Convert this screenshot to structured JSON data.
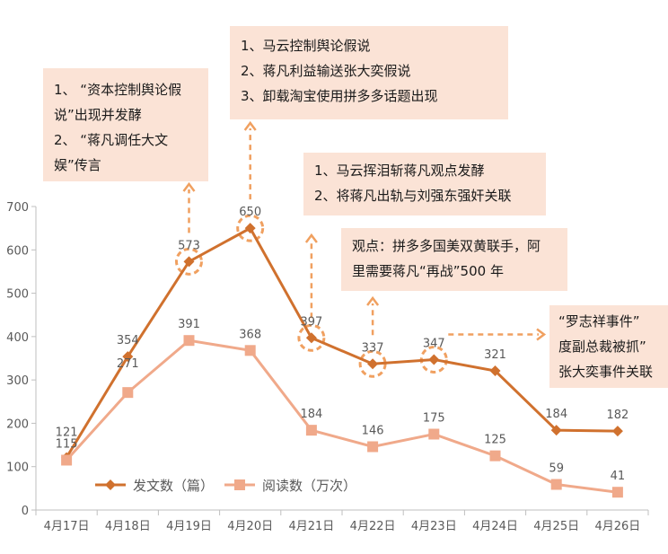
{
  "chart_data": {
    "type": "line",
    "categories": [
      "4月17日",
      "4月18日",
      "4月19日",
      "4月20日",
      "4月21日",
      "4月22日",
      "4月23日",
      "4月24日",
      "4月25日",
      "4月26日"
    ],
    "series": [
      {
        "name": "发文数（篇）",
        "values": [
          121,
          354,
          573,
          650,
          397,
          337,
          347,
          321,
          184,
          182
        ],
        "color": "#d0712e",
        "marker": "diamond"
      },
      {
        "name": "阅读数（万次）",
        "values": [
          115,
          271,
          391,
          368,
          184,
          146,
          175,
          125,
          59,
          41
        ],
        "color": "#f0a98a",
        "marker": "square"
      }
    ],
    "y_ticks": [
      0,
      100,
      200,
      300,
      400,
      500,
      600,
      700
    ],
    "ylim": [
      0,
      700
    ],
    "legend_position": "bottom-left",
    "grid": false,
    "highlighted_points": [
      2,
      3,
      4,
      5,
      6
    ],
    "callout_color": "#f0a060"
  },
  "annotations": {
    "note1": [
      "1、 “资本控制舆论假",
      "说”出现并发酵",
      "2、 “蒋凡调任大文",
      "娱”传言"
    ],
    "note2": [
      "1、马云控制舆论假说",
      "2、蒋凡利益输送张大奕假说",
      "3、卸载淘宝使用拼多多话题出现"
    ],
    "note3": [
      "1、马云挥泪斩蒋凡观点发酵",
      "2、将蒋凡出轨与刘强东强奸关联"
    ],
    "note4": [
      "观点：拼多多国美双黄联手，阿",
      "里需要蒋凡“再战”500 年"
    ],
    "note5": [
      "“罗志祥事件”",
      "度副总裁被抓”",
      "张大奕事件关联"
    ]
  }
}
